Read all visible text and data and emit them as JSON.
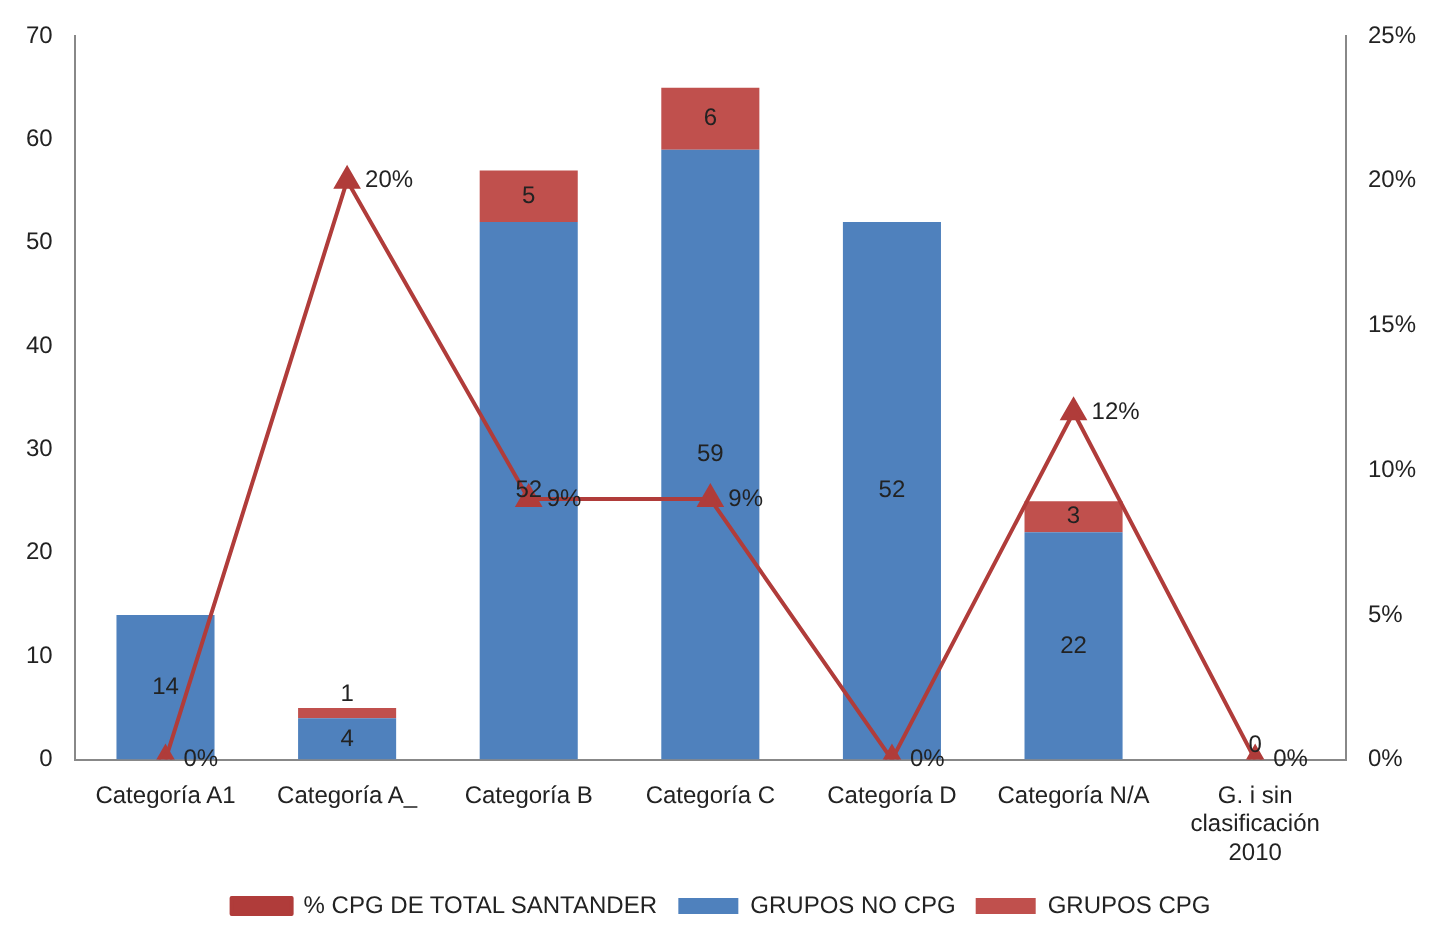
{
  "chart_data": {
    "type": "bar",
    "stacked": true,
    "categories": [
      "Categoría A1",
      "Categoría A_",
      "Categoría B",
      "Categoría C",
      "Categoría D",
      "Categoría N/A",
      "G. i sin clasificación 2010"
    ],
    "series": [
      {
        "name": "GRUPOS NO CPG",
        "color": "#4f81bd",
        "values": [
          14,
          4,
          52,
          59,
          52,
          22,
          0
        ],
        "value_labels": [
          "14",
          "4",
          "52",
          "59",
          "52",
          "22",
          "0"
        ]
      },
      {
        "name": "GRUPOS CPG",
        "color": "#c0504d",
        "values": [
          0,
          1,
          5,
          6,
          0,
          3,
          0
        ],
        "value_labels": [
          null,
          "1",
          "5",
          "6",
          null,
          "3",
          null
        ]
      },
      {
        "name": "% CPG DE TOTAL SANTANDER",
        "type": "line",
        "axis": "y2",
        "color": "#b03c3a",
        "marker": "triangle",
        "values": [
          0,
          20,
          9,
          9,
          0,
          12,
          0
        ],
        "value_labels": [
          "0%",
          "20%",
          "9%",
          "9%",
          "0%",
          "12%",
          "0%"
        ]
      }
    ],
    "ylim": [
      0,
      70
    ],
    "yticks": [
      0,
      10,
      20,
      30,
      40,
      50,
      60,
      70
    ],
    "y2lim": [
      0,
      25
    ],
    "y2ticks": [
      {
        "value": 0,
        "label": "0%"
      },
      {
        "value": 5,
        "label": "5%"
      },
      {
        "value": 10,
        "label": "10%"
      },
      {
        "value": 15,
        "label": "15%"
      },
      {
        "value": 20,
        "label": "20%"
      },
      {
        "value": 25,
        "label": "25%"
      }
    ],
    "grid": false,
    "legend": "bottom"
  }
}
